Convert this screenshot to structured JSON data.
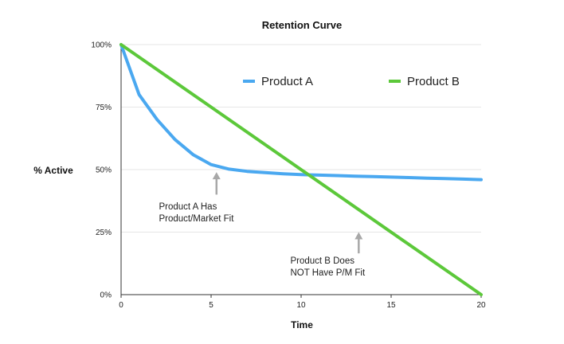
{
  "chart_data": {
    "type": "line",
    "title": "Retention Curve",
    "xlabel": "Time",
    "ylabel": "% Active",
    "xlim": [
      0,
      20
    ],
    "ylim": [
      0,
      100
    ],
    "x_ticks": [
      0,
      5,
      10,
      15,
      20
    ],
    "x_tick_labels": [
      "0",
      "5",
      "10",
      "15",
      "20"
    ],
    "y_ticks": [
      0,
      25,
      50,
      75,
      100
    ],
    "y_tick_labels": [
      "0%",
      "25%",
      "50%",
      "75%",
      "100%"
    ],
    "grid": true,
    "legend_position": "top-right",
    "series": [
      {
        "name": "Product A",
        "color": "#4aa8f0",
        "x": [
          0,
          1,
          2,
          3,
          4,
          5,
          6,
          7,
          8,
          9,
          10,
          11,
          12,
          13,
          14,
          15,
          16,
          17,
          18,
          19,
          20
        ],
        "values": [
          100,
          80,
          70,
          62,
          56,
          52,
          50.2,
          49.3,
          48.8,
          48.3,
          48,
          47.8,
          47.6,
          47.4,
          47.2,
          47,
          46.8,
          46.6,
          46.4,
          46.2,
          46
        ]
      },
      {
        "name": "Product B",
        "color": "#5cc83a",
        "x": [
          0,
          20
        ],
        "values": [
          100,
          0
        ]
      }
    ],
    "annotations": [
      {
        "lines": [
          "Product A Has",
          "Product/Market Fit"
        ],
        "arrow_x": 5.3,
        "arrow_top": 49,
        "arrow_bottom": 40,
        "text_x": 2.1,
        "text_y": 34
      },
      {
        "lines": [
          "Product B Does",
          "NOT Have P/M Fit"
        ],
        "arrow_x": 13.2,
        "arrow_top": 25,
        "arrow_bottom": 16.5,
        "text_x": 9.4,
        "text_y": 12.5
      }
    ]
  }
}
